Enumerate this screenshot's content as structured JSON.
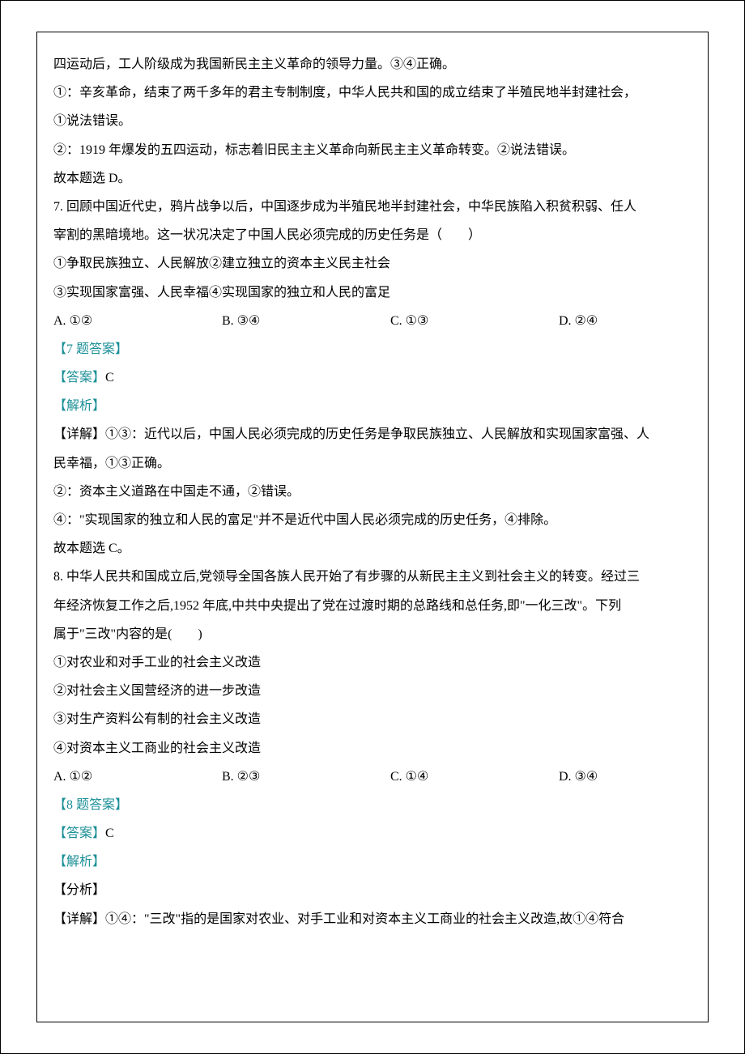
{
  "colors": {
    "teal": "#1b8f97",
    "black": "#000000",
    "bg": "#ffffff",
    "border": "#000000"
  },
  "typography": {
    "font_family": "SimSun",
    "font_size_pt": 12,
    "line_height": 2.2
  },
  "intro_tail": {
    "line1": "四运动后，工人阶级成为我国新民主主义革命的领导力量。③④正确。",
    "line2": "①：辛亥革命，结束了两千多年的君主专制制度，中华人民共和国的成立结束了半殖民地半封建社会，",
    "line3": "①说法错误。",
    "line4": "②：1919 年爆发的五四运动，标志着旧民主主义革命向新民主主义革命转变。②说法错误。",
    "line5": "故本题选 D。"
  },
  "q7": {
    "stem1": "7. 回顾中国近代史，鸦片战争以后，中国逐步成为半殖民地半封建社会，中华民族陷入积贫积弱、任人",
    "stem2": "宰割的黑暗境地。这一状况决定了中国人民必须完成的历史任务是（　　）",
    "items1": "①争取民族独立、人民解放②建立独立的资本主义民主社会",
    "items2": "③实现国家富强、人民幸福④实现国家的独立和人民的富足",
    "optA": "A. ①②",
    "optB": "B. ③④",
    "optC": "C. ①③",
    "optD": "D. ②④",
    "ans_header": "【7 题答案】",
    "ans_label": "【答案】",
    "ans_val": "C",
    "analysis_label": "【解析】",
    "detail1": "【详解】①③：近代以后，中国人民必须完成的历史任务是争取民族独立、人民解放和实现国家富强、人",
    "detail2": "民幸福，①③正确。",
    "detail3": "②：资本主义道路在中国走不通，②错误。",
    "detail4": "④：\"实现国家的独立和人民的富足\"并不是近代中国人民必须完成的历史任务，④排除。",
    "detail5": "故本题选 C。"
  },
  "q8": {
    "stem1": "8. 中华人民共和国成立后,党领导全国各族人民开始了有步骤的从新民主主义到社会主义的转变。经过三",
    "stem2": "年经济恢复工作之后,1952 年底,中共中央提出了党在过渡时期的总路线和总任务,即\"一化三改\"。下列",
    "stem3": "属于\"三改\"内容的是(　　)",
    "item1": "①对农业和对手工业的社会主义改造",
    "item2": "②对社会主义国营经济的进一步改造",
    "item3": "③对生产资料公有制的社会主义改造",
    "item4": "④对资本主义工商业的社会主义改造",
    "optA": "A.  ①②",
    "optB": "B.  ②③",
    "optC": "C.  ①④",
    "optD": "D.  ③④",
    "ans_header": "【8 题答案】",
    "ans_label": "【答案】",
    "ans_val": "C",
    "analysis_label": "【解析】",
    "fenxi_label": "【分析】",
    "detail1": "【详解】①④：\"三改\"指的是国家对农业、对手工业和对资本主义工商业的社会主义改造,故①④符合"
  }
}
